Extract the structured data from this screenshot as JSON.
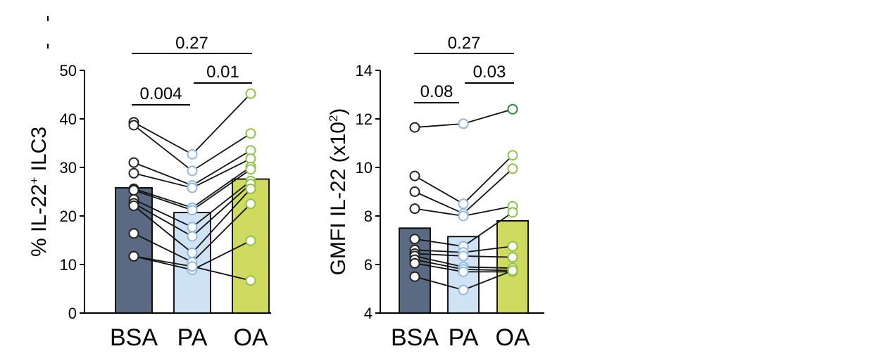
{
  "colors": {
    "BSA": "#5a6a82",
    "PA": "#cfe3f5",
    "OA": "#cfdb5e",
    "bsa_marker": "#222222",
    "pa_marker": "#8fb9df",
    "oa_marker": "#8fc24a",
    "oa_marker_dark": "#2a8a3c"
  },
  "chart_data": [
    {
      "type": "bar",
      "categories": [
        "BSA",
        "PA",
        "OA"
      ],
      "values": [
        25.8,
        20.7,
        27.6
      ],
      "ylabel_main": "% IL-22",
      "ylabel_sup": "+",
      "ylabel_tail": " ILC3",
      "ylim": [
        0,
        50
      ],
      "yticks": [
        0,
        10,
        20,
        30,
        40,
        50
      ],
      "grid": false,
      "legend": "none",
      "points": [
        [
          39.3,
          32.7,
          45.2
        ],
        [
          38.7,
          29.3,
          37.0
        ],
        [
          31.0,
          26.3,
          33.5
        ],
        [
          28.8,
          25.8,
          31.8
        ],
        [
          25.6,
          21.7,
          30.1
        ],
        [
          25.3,
          21.2,
          29.6
        ],
        [
          23.4,
          17.7,
          27.2
        ],
        [
          22.6,
          15.8,
          26.6
        ],
        [
          22.1,
          12.4,
          25.6
        ],
        [
          16.4,
          10.5,
          22.5
        ],
        [
          11.7,
          8.9,
          14.9
        ],
        [
          11.7,
          9.6,
          6.7
        ]
      ],
      "pvalues": [
        {
          "from": "BSA",
          "to": "OA",
          "label": "0.27"
        },
        {
          "from": "PA",
          "to": "OA",
          "label": "0.01"
        },
        {
          "from": "BSA",
          "to": "PA",
          "label": "0.004"
        }
      ]
    },
    {
      "type": "bar",
      "categories": [
        "BSA",
        "PA",
        "OA"
      ],
      "values": [
        7.5,
        7.15,
        7.8
      ],
      "ylabel_main": "GMFI IL-22 (x10",
      "ylabel_sup": "2",
      "ylabel_tail": ")",
      "ylim": [
        4,
        14
      ],
      "yticks": [
        4,
        6,
        8,
        10,
        12,
        14
      ],
      "grid": false,
      "legend": "none",
      "points": [
        [
          11.65,
          11.8,
          12.4
        ],
        [
          9.65,
          8.5,
          10.5
        ],
        [
          9.0,
          8.1,
          9.95
        ],
        [
          8.3,
          8.0,
          8.4
        ],
        [
          7.05,
          6.75,
          8.15
        ],
        [
          6.6,
          6.5,
          6.75
        ],
        [
          6.45,
          6.35,
          6.3
        ],
        [
          6.35,
          5.9,
          5.85
        ],
        [
          6.2,
          5.8,
          5.75
        ],
        [
          6.05,
          5.7,
          5.7
        ],
        [
          5.5,
          4.95,
          5.75
        ]
      ],
      "pvalues": [
        {
          "from": "BSA",
          "to": "OA",
          "label": "0.27"
        },
        {
          "from": "PA",
          "to": "OA",
          "label": "0.03"
        },
        {
          "from": "BSA",
          "to": "PA",
          "label": "0.08"
        }
      ]
    }
  ]
}
